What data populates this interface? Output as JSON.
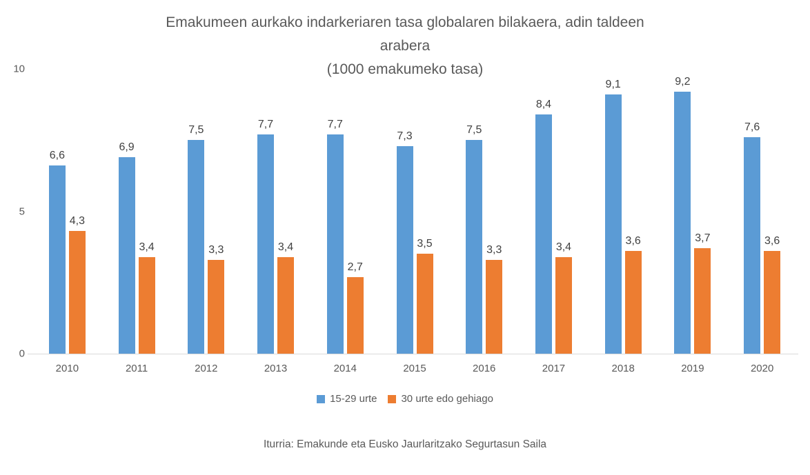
{
  "chart_data": {
    "type": "bar",
    "title": "Emakumeen aurkako indarkeriaren tasa globalaren bilakaera, adin taldeen arabera",
    "subtitle": "(1000 emakumeko tasa)",
    "title_lines": [
      "Emakumeen aurkako indarkeriaren tasa globalaren bilakaera, adin taldeen",
      "arabera",
      "(1000 emakumeko tasa)"
    ],
    "categories": [
      "2010",
      "2011",
      "2012",
      "2013",
      "2014",
      "2015",
      "2016",
      "2017",
      "2018",
      "2019",
      "2020"
    ],
    "series": [
      {
        "name": "15-29 urte",
        "color": "#5B9BD5",
        "values": [
          6.6,
          6.9,
          7.5,
          7.7,
          7.7,
          7.3,
          7.5,
          8.4,
          9.1,
          9.2,
          7.6
        ]
      },
      {
        "name": "30 urte edo gehiago",
        "color": "#ED7D31",
        "values": [
          4.3,
          3.4,
          3.3,
          3.4,
          2.7,
          3.5,
          3.3,
          3.4,
          3.6,
          3.7,
          3.6
        ]
      }
    ],
    "ylim": [
      0,
      10
    ],
    "yticks": [
      0,
      5,
      10
    ],
    "grid": false,
    "legend_position": "bottom",
    "decimal_separator": ",",
    "data_labels": true,
    "source": "Iturria: Emakunde eta Eusko Jaurlaritzako Segurtasun Saila",
    "colors": {
      "axis_line": "#d9d9d9",
      "axis_text": "#595959",
      "title_text": "#595959",
      "data_label_text": "#404040",
      "background": "#ffffff"
    }
  }
}
